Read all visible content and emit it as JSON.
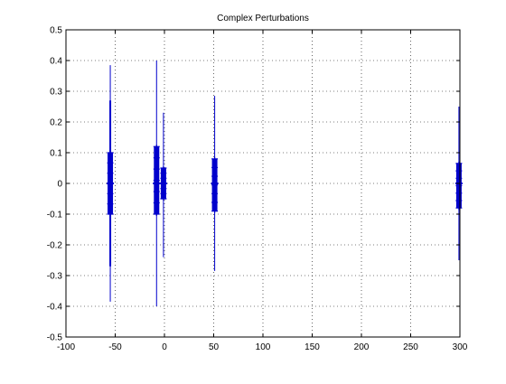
{
  "chart_data": {
    "type": "scatter",
    "title": "Complex Perturbations",
    "xlabel": "",
    "ylabel": "",
    "xlim": [
      -100,
      300
    ],
    "ylim": [
      -0.5,
      0.5
    ],
    "x_ticks": [
      -100,
      -50,
      0,
      50,
      100,
      150,
      200,
      250,
      300
    ],
    "y_ticks": [
      -0.5,
      -0.4,
      -0.3,
      -0.2,
      -0.1,
      0,
      0.1,
      0.2,
      0.3,
      0.4,
      0.5
    ],
    "x_tick_labels": [
      "-100",
      "-50",
      "0",
      "50",
      "100",
      "150",
      "200",
      "250",
      "300"
    ],
    "y_tick_labels": [
      "-0.5",
      "-0.4",
      "-0.3",
      "-0.2",
      "-0.1",
      "0",
      "0.1",
      "0.2",
      "0.3",
      "0.4",
      "0.5"
    ],
    "grid": true,
    "grid_style": "dotted",
    "series_color": "#0000cc",
    "clusters": [
      {
        "x": -55,
        "thin_min": -0.385,
        "thin_max": 0.385,
        "thick_min": -0.1,
        "thick_max": 0.1,
        "mid_min": -0.27,
        "mid_max": 0.27
      },
      {
        "x": -8,
        "thin_min": -0.4,
        "thin_max": 0.4,
        "thick_min": -0.1,
        "thick_max": 0.12,
        "mid_min": -0.1,
        "mid_max": 0.12
      },
      {
        "x": -1,
        "thin_min": -0.24,
        "thin_max": 0.23,
        "thick_min": -0.05,
        "thick_max": 0.05,
        "mid_min": -0.05,
        "mid_max": 0.05
      },
      {
        "x": 51,
        "thin_min": -0.285,
        "thin_max": 0.285,
        "thick_min": -0.09,
        "thick_max": 0.08,
        "mid_min": -0.09,
        "mid_max": 0.08
      },
      {
        "x": 299,
        "thin_min": -0.25,
        "thin_max": 0.25,
        "thick_min": -0.08,
        "thick_max": 0.065,
        "mid_min": -0.08,
        "mid_max": 0.065
      }
    ]
  }
}
